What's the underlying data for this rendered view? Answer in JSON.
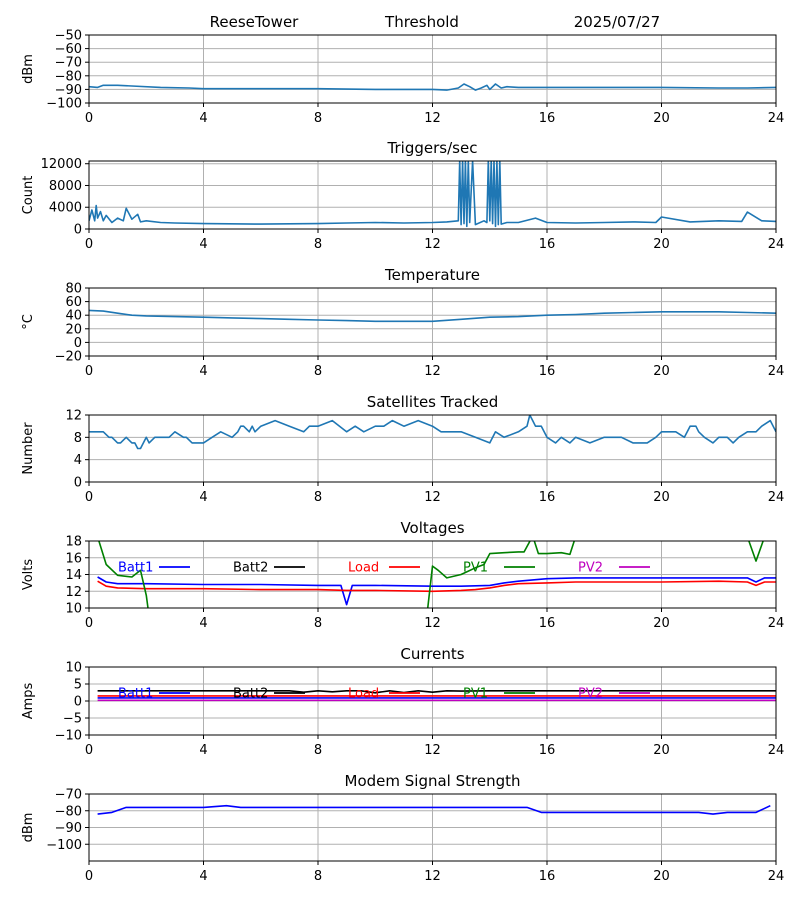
{
  "header": {
    "site": "ReeseTower",
    "mode": "Threshold",
    "date": "2025/07/27"
  },
  "colors": {
    "default_series": "#1f77b4",
    "grid": "#b0b0b0",
    "batt1": "#0000ff",
    "batt2": "#000000",
    "load": "#ff0000",
    "pv1": "#008000",
    "pv2": "#bf00bf"
  },
  "chart_data": [
    {
      "type": "line",
      "title": "",
      "xlabel": "",
      "ylabel": "dBm",
      "xlim": [
        0,
        24
      ],
      "ylim": [
        -100,
        -50
      ],
      "xticks": [
        0,
        4,
        8,
        12,
        16,
        20,
        24
      ],
      "yticks": [
        -100,
        -90,
        -80,
        -70,
        -60,
        -50
      ],
      "grid": true,
      "series": [
        {
          "name": "",
          "color": "#1f77b4",
          "x": [
            0,
            0.3,
            0.5,
            1.0,
            1.5,
            2.5,
            3.5,
            4.0,
            6,
            8,
            10,
            11,
            12,
            12.5,
            12.9,
            13.1,
            13.3,
            13.5,
            13.7,
            13.9,
            14.0,
            14.2,
            14.4,
            14.6,
            15,
            16,
            18,
            20,
            22,
            23,
            24
          ],
          "y": [
            -88,
            -88.5,
            -87,
            -87,
            -87.5,
            -88.5,
            -89,
            -89.5,
            -89.5,
            -89.5,
            -90,
            -90,
            -90,
            -90.5,
            -89,
            -86,
            -88,
            -90.5,
            -89,
            -87,
            -90,
            -86,
            -89,
            -88,
            -88.5,
            -88.5,
            -88.5,
            -88.5,
            -89,
            -89,
            -88.5
          ]
        }
      ]
    },
    {
      "type": "line",
      "title": "Triggers/sec",
      "xlabel": "",
      "ylabel": "Count",
      "xlim": [
        0,
        24
      ],
      "ylim": [
        0,
        12500
      ],
      "xticks": [
        0,
        4,
        8,
        12,
        16,
        20,
        24
      ],
      "yticks": [
        0,
        4000,
        8000,
        12000
      ],
      "grid": true,
      "series": [
        {
          "name": "",
          "color": "#1f77b4",
          "x": [
            0,
            0.1,
            0.2,
            0.25,
            0.3,
            0.4,
            0.5,
            0.6,
            0.8,
            1.0,
            1.2,
            1.3,
            1.5,
            1.7,
            1.8,
            2.0,
            2.5,
            3.0,
            4.0,
            6,
            8,
            9,
            10,
            11,
            12,
            12.5,
            12.9,
            12.95,
            13.0,
            13.05,
            13.1,
            13.15,
            13.2,
            13.25,
            13.3,
            13.4,
            13.5,
            13.8,
            13.9,
            13.95,
            14.0,
            14.05,
            14.1,
            14.15,
            14.2,
            14.25,
            14.3,
            14.35,
            14.4,
            14.6,
            15,
            15.6,
            16,
            17,
            18,
            19,
            19.8,
            20,
            21,
            22,
            22.8,
            23,
            23.5,
            24
          ],
          "y": [
            1500,
            3500,
            1500,
            4300,
            2000,
            3200,
            1500,
            2500,
            1200,
            2000,
            1500,
            3800,
            1800,
            2700,
            1300,
            1500,
            1200,
            1100,
            1000,
            900,
            1000,
            1100,
            1200,
            1100,
            1200,
            1300,
            1500,
            12500,
            800,
            12500,
            1000,
            12500,
            500,
            12500,
            1200,
            12500,
            800,
            1500,
            1200,
            12500,
            1500,
            12500,
            1000,
            12500,
            500,
            12500,
            800,
            12500,
            900,
            1200,
            1200,
            2000,
            1200,
            1100,
            1200,
            1300,
            1200,
            2200,
            1300,
            1500,
            1400,
            3100,
            1500,
            1400
          ]
        }
      ]
    },
    {
      "type": "line",
      "title": "Temperature",
      "xlabel": "",
      "ylabel": "°C",
      "xlim": [
        0,
        24
      ],
      "ylim": [
        -20,
        80
      ],
      "xticks": [
        0,
        4,
        8,
        12,
        16,
        20,
        24
      ],
      "yticks": [
        -20,
        0,
        20,
        40,
        60,
        80
      ],
      "grid": true,
      "series": [
        {
          "name": "",
          "color": "#1f77b4",
          "x": [
            0,
            0.5,
            1,
            1.5,
            2,
            3,
            4,
            5,
            6,
            7,
            8,
            9,
            10,
            11,
            12,
            13,
            14,
            15,
            16,
            17,
            18,
            19,
            20,
            21,
            22,
            23,
            24
          ],
          "y": [
            47,
            46,
            43,
            40,
            39,
            38,
            37,
            36,
            35,
            34,
            33,
            32,
            31,
            31,
            31,
            34,
            37,
            38,
            40,
            41,
            43,
            44,
            45,
            45,
            45,
            44,
            43
          ]
        }
      ]
    },
    {
      "type": "line",
      "title": "Satellites Tracked",
      "xlabel": "",
      "ylabel": "Number",
      "xlim": [
        0,
        24
      ],
      "ylim": [
        0,
        12
      ],
      "xticks": [
        0,
        4,
        8,
        12,
        16,
        20,
        24
      ],
      "yticks": [
        0,
        4,
        8,
        12
      ],
      "grid": true,
      "series": [
        {
          "name": "",
          "color": "#1f77b4",
          "x": [
            0,
            0.5,
            0.7,
            0.8,
            1.0,
            1.1,
            1.3,
            1.5,
            1.6,
            1.7,
            1.8,
            2.0,
            2.1,
            2.3,
            2.8,
            3.0,
            3.3,
            3.4,
            3.6,
            4.0,
            4.3,
            4.6,
            5.0,
            5.2,
            5.3,
            5.4,
            5.6,
            5.7,
            5.8,
            6.0,
            6.5,
            7.0,
            7.5,
            7.7,
            8.0,
            8.5,
            9.0,
            9.3,
            9.6,
            10.0,
            10.3,
            10.6,
            11.0,
            11.5,
            12.0,
            12.3,
            12.5,
            12.8,
            13.0,
            13.5,
            14.0,
            14.2,
            14.5,
            15.0,
            15.3,
            15.4,
            15.5,
            15.6,
            15.8,
            16.0,
            16.3,
            16.5,
            16.8,
            17.0,
            17.5,
            18.0,
            18.3,
            18.6,
            19.0,
            19.5,
            19.8,
            20.0,
            20.5,
            20.8,
            21.0,
            21.2,
            21.3,
            21.5,
            21.8,
            22.0,
            22.3,
            22.5,
            22.7,
            23.0,
            23.3,
            23.5,
            23.8,
            24.0
          ],
          "y": [
            9,
            9,
            8,
            8,
            7,
            7,
            8,
            7,
            7,
            6,
            6,
            8,
            7,
            8,
            8,
            9,
            8,
            8,
            7,
            7,
            8,
            9,
            8,
            9,
            10,
            10,
            9,
            10,
            9,
            10,
            11,
            10,
            9,
            10,
            10,
            11,
            9,
            10,
            9,
            10,
            10,
            11,
            10,
            11,
            10,
            9,
            9,
            9,
            9,
            8,
            7,
            9,
            8,
            9,
            10,
            12,
            11,
            10,
            10,
            8,
            7,
            8,
            7,
            8,
            7,
            8,
            8,
            8,
            7,
            7,
            8,
            9,
            9,
            8,
            10,
            10,
            9,
            8,
            7,
            8,
            8,
            7,
            8,
            9,
            9,
            10,
            11,
            9
          ]
        }
      ]
    },
    {
      "type": "line",
      "title": "Voltages",
      "xlabel": "",
      "ylabel": "Volts",
      "xlim": [
        0,
        24
      ],
      "ylim": [
        10,
        18
      ],
      "xticks": [
        0,
        4,
        8,
        12,
        16,
        20,
        24
      ],
      "yticks": [
        10,
        12,
        14,
        16,
        18
      ],
      "grid": true,
      "legend": "top",
      "series": [
        {
          "name": "Batt1",
          "color": "#0000ff",
          "x": [
            0.3,
            0.6,
            1.0,
            2.0,
            4.0,
            6.0,
            8.0,
            8.8,
            9.0,
            9.2,
            10.0,
            12.0,
            13.0,
            14.0,
            14.5,
            15.0,
            16.0,
            17.0,
            20.0,
            22.0,
            23.0,
            23.3,
            23.6,
            24.0
          ],
          "y": [
            13.7,
            13.1,
            12.9,
            12.9,
            12.8,
            12.8,
            12.7,
            12.7,
            10.4,
            12.7,
            12.7,
            12.6,
            12.6,
            12.7,
            13.0,
            13.2,
            13.5,
            13.6,
            13.6,
            13.6,
            13.6,
            13.1,
            13.6,
            13.6
          ]
        },
        {
          "name": "Batt2",
          "color": "#000000",
          "x": [],
          "y": []
        },
        {
          "name": "Load",
          "color": "#ff0000",
          "x": [
            0.3,
            0.6,
            1.0,
            2.0,
            4.0,
            6.0,
            8.0,
            9.0,
            10.0,
            12.0,
            13.0,
            13.5,
            14.0,
            14.5,
            15.0,
            16.0,
            17.0,
            20.0,
            22.0,
            23.0,
            23.3,
            23.6,
            24.0
          ],
          "y": [
            13.2,
            12.6,
            12.4,
            12.3,
            12.3,
            12.2,
            12.2,
            12.1,
            12.1,
            12.0,
            12.1,
            12.2,
            12.4,
            12.7,
            12.9,
            13.0,
            13.1,
            13.1,
            13.2,
            13.1,
            12.7,
            13.1,
            13.1
          ]
        },
        {
          "name": "PV1",
          "color": "#008000",
          "x": [
            0.3,
            0.6,
            1.0,
            1.5,
            1.8,
            2.0,
            2.1,
            11.8,
            12.0,
            12.2,
            12.5,
            13.0,
            13.5,
            13.8,
            14.0,
            14.5,
            15.0,
            15.2,
            15.5,
            15.7,
            16.0,
            16.5,
            16.8,
            17.0,
            23.0,
            23.3,
            23.6
          ],
          "y": [
            18.5,
            15.2,
            13.9,
            13.7,
            14.5,
            11.5,
            9.0,
            9.0,
            15.0,
            14.5,
            13.6,
            14.0,
            14.8,
            15.2,
            16.5,
            16.6,
            16.7,
            16.7,
            18.6,
            16.5,
            16.5,
            16.6,
            16.4,
            18.5,
            18.5,
            15.6,
            18.5
          ]
        },
        {
          "name": "PV2",
          "color": "#bf00bf",
          "x": [],
          "y": []
        }
      ]
    },
    {
      "type": "line",
      "title": "Currents",
      "xlabel": "",
      "ylabel": "Amps",
      "xlim": [
        0,
        24
      ],
      "ylim": [
        -10,
        10
      ],
      "xticks": [
        0,
        4,
        8,
        12,
        16,
        20,
        24
      ],
      "yticks": [
        -10,
        -5,
        0,
        5,
        10
      ],
      "grid": true,
      "legend": "top",
      "series": [
        {
          "name": "Batt1",
          "color": "#0000ff",
          "x": [
            0.3,
            24
          ],
          "y": [
            0.9,
            0.9
          ]
        },
        {
          "name": "Batt2",
          "color": "#000000",
          "x": [
            0.3,
            7.0,
            7.5,
            8.0,
            8.5,
            9.0,
            9.5,
            10.0,
            10.5,
            11.0,
            11.5,
            12.0,
            12.5,
            13.0,
            14.0,
            16.0,
            20.0,
            24.0
          ],
          "y": [
            3.0,
            3.0,
            2.6,
            3.0,
            2.7,
            3.0,
            3.0,
            2.4,
            3.0,
            2.5,
            3.0,
            2.6,
            3.0,
            2.9,
            3.0,
            3.0,
            3.0,
            3.0
          ]
        },
        {
          "name": "Load",
          "color": "#ff0000",
          "x": [
            0.3,
            24
          ],
          "y": [
            1.5,
            1.5
          ]
        },
        {
          "name": "PV1",
          "color": "#008000",
          "x": [],
          "y": []
        },
        {
          "name": "PV2",
          "color": "#bf00bf",
          "x": [
            0.3,
            24
          ],
          "y": [
            0.2,
            0.2
          ]
        }
      ]
    },
    {
      "type": "line",
      "title": "Modem Signal Strength",
      "xlabel": "",
      "ylabel": "dBm",
      "xlim": [
        0,
        24
      ],
      "ylim": [
        -110,
        -70
      ],
      "xticks": [
        0,
        4,
        8,
        12,
        16,
        20,
        24
      ],
      "yticks": [
        -100,
        -90,
        -80,
        -70
      ],
      "grid": true,
      "series": [
        {
          "name": "",
          "color": "#0000ff",
          "x": [
            0.3,
            0.8,
            1.3,
            2.0,
            3.0,
            4.0,
            4.8,
            5.3,
            6.0,
            8.0,
            10.0,
            12.0,
            14.0,
            15.3,
            15.8,
            16.0,
            18.0,
            20.0,
            21.3,
            21.8,
            22.3,
            23.3,
            23.8
          ],
          "y": [
            -82,
            -81,
            -78,
            -78,
            -78,
            -78,
            -77,
            -78,
            -78,
            -78,
            -78,
            -78,
            -78,
            -78,
            -81,
            -81,
            -81,
            -81,
            -81,
            -82,
            -81,
            -81,
            -77
          ]
        }
      ]
    }
  ]
}
